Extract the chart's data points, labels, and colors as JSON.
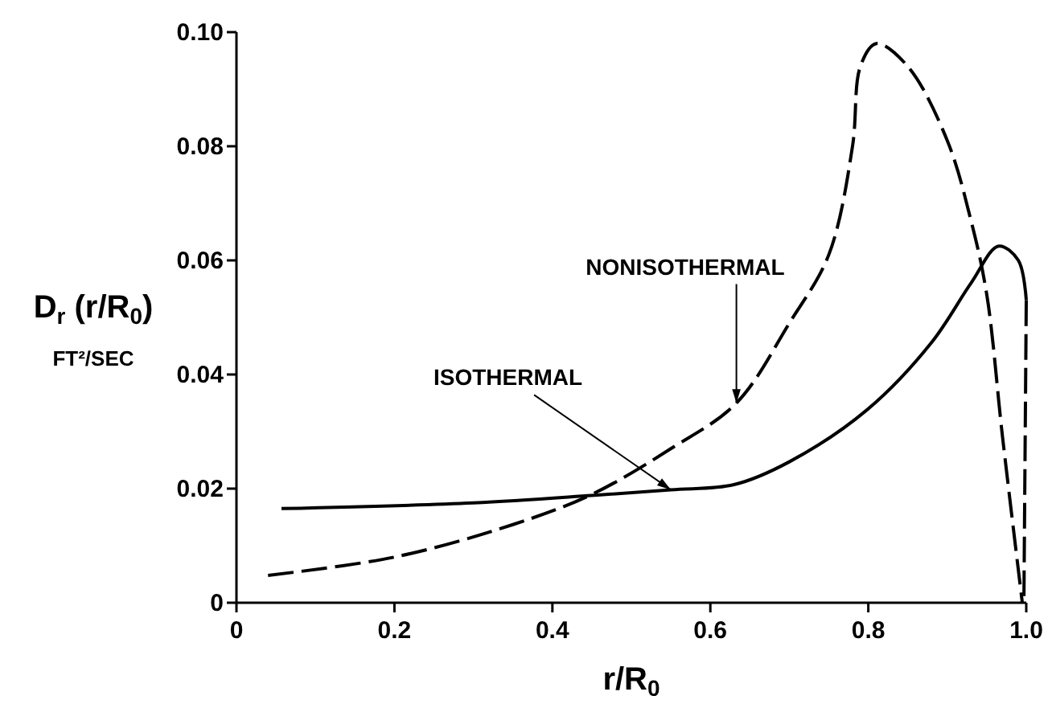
{
  "chart_data": {
    "type": "line",
    "xlabel": "r/R$_{0}$",
    "ylabel": "D$_{r}$ (r/R$_{0}$)\nFT²/SEC",
    "xlim": [
      0,
      1.0
    ],
    "ylim": [
      0,
      0.1
    ],
    "xticks": [
      0,
      0.2,
      0.4,
      0.6,
      0.8,
      {
        "value": 1.0,
        "label": "1.0"
      }
    ],
    "yticks": [
      0,
      0.02,
      0.04,
      0.06,
      0.08,
      {
        "value": 0.1,
        "label": "0.10"
      }
    ],
    "grid": false,
    "series": [
      {
        "color": "#000000",
        "line_style": "solid",
        "x": [
          0.057,
          0.3,
          0.45,
          0.55,
          0.63,
          0.7,
          0.8,
          0.88,
          0.93,
          0.965,
          0.99,
          1.0
        ],
        "values": [
          0.0165,
          0.0175,
          0.0188,
          0.0198,
          0.0207,
          0.0247,
          0.034,
          0.0456,
          0.056,
          0.0625,
          0.06,
          0.053
        ]
      },
      {
        "color": "#000000",
        "line_style": "dashed",
        "x": [
          0.04,
          0.2,
          0.35,
          0.45,
          0.55,
          0.633,
          0.7,
          0.75,
          0.78,
          0.79,
          0.81,
          0.85,
          0.9,
          0.93,
          0.95,
          0.97,
          0.995
        ],
        "values": [
          0.0048,
          0.008,
          0.0137,
          0.019,
          0.027,
          0.035,
          0.049,
          0.061,
          0.08,
          0.094,
          0.098,
          0.094,
          0.081,
          0.067,
          0.054,
          0.029,
          0.0
        ]
      },
      {
        "color": "#000000",
        "line_style": "dashed",
        "x": [
          1.0,
          0.997
        ],
        "values": [
          0.053,
          0.0
        ]
      }
    ],
    "annotations": [
      {
        "text": "NONISOTHERMAL",
        "x": 0.633,
        "y": 0.035
      },
      {
        "text": "ISOTHERMAL",
        "x": 0.55,
        "y": 0.0198
      }
    ]
  }
}
